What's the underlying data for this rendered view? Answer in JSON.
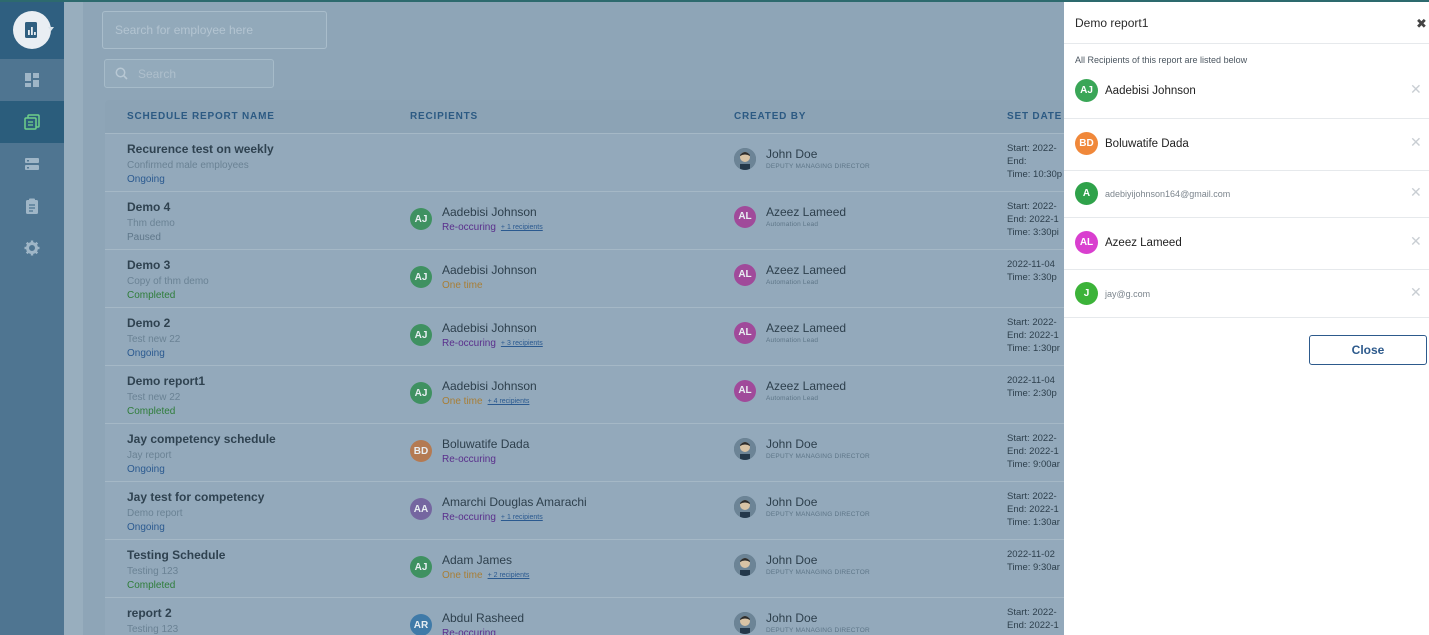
{
  "colors": {
    "sidebar": "#4f7591",
    "sidebar_active": "#2b5d7c",
    "accent": "#2d5a8c",
    "overlay": "#8ea5b7",
    "status_ongoing": "#2b5a90",
    "status_completed": "#2f7d3a"
  },
  "sidebar": {
    "icons": [
      "report-logo-icon",
      "dashboard-icon",
      "reports-icon",
      "list-icon",
      "clipboard-icon",
      "gear-icon"
    ]
  },
  "header": {
    "employee_search_placeholder": "Search for employee here",
    "search_placeholder": "Search"
  },
  "table": {
    "columns": [
      "SCHEDULE REPORT NAME",
      "RECIPIENTS",
      "CREATED BY",
      "SET DATE"
    ],
    "rows": [
      {
        "name": "Recurence test on weekly",
        "desc": "Confirmed male employees",
        "status": "Ongoing",
        "recipient": "",
        "frequency": "",
        "more": "",
        "created_by": "John Doe",
        "role": "DEPUTY MANAGING DIRECTOR",
        "date_lines": [
          "Start: 2022-",
          "End:",
          "Time: 10:30p"
        ]
      },
      {
        "name": "Demo 4",
        "desc": "Thm demo",
        "status": "Paused",
        "recipient": "Aadebisi Johnson",
        "initials": "AJ",
        "frequency": "Re-occuring",
        "more": "+ 1 recipients",
        "created_by": "Azeez Lameed",
        "created_initials": "AL",
        "role": "Automation Lead",
        "date_lines": [
          "Start: 2022-",
          "End: 2022-1",
          "Time: 3:30pi"
        ]
      },
      {
        "name": "Demo 3",
        "desc": "Copy of thm demo",
        "status": "Completed",
        "recipient": "Aadebisi Johnson",
        "initials": "AJ",
        "frequency": "One time",
        "more": "",
        "created_by": "Azeez Lameed",
        "created_initials": "AL",
        "role": "Automation Lead",
        "date_lines": [
          "2022-11-04",
          "Time: 3:30p"
        ]
      },
      {
        "name": "Demo 2",
        "desc": "Test new 22",
        "status": "Ongoing",
        "recipient": "Aadebisi Johnson",
        "initials": "AJ",
        "frequency": "Re-occuring",
        "more": "+ 3 recipients",
        "created_by": "Azeez Lameed",
        "created_initials": "AL",
        "role": "Automation Lead",
        "date_lines": [
          "Start: 2022-",
          "End: 2022-1",
          "Time: 1:30pr"
        ]
      },
      {
        "name": "Demo report1",
        "desc": "Test new 22",
        "status": "Completed",
        "recipient": "Aadebisi Johnson",
        "initials": "AJ",
        "frequency": "One time",
        "more": "+ 4 recipients",
        "created_by": "Azeez Lameed",
        "created_initials": "AL",
        "role": "Automation Lead",
        "date_lines": [
          "2022-11-04",
          "Time: 2:30p"
        ]
      },
      {
        "name": "Jay competency schedule",
        "desc": "Jay report",
        "status": "Ongoing",
        "recipient": "Boluwatife Dada",
        "initials": "BD",
        "frequency": "Re-occuring",
        "more": "",
        "created_by": "John Doe",
        "role": "DEPUTY MANAGING DIRECTOR",
        "date_lines": [
          "Start: 2022-",
          "End: 2022-1",
          "Time: 9:00ar"
        ]
      },
      {
        "name": "Jay test for competency",
        "desc": "Demo report",
        "status": "Ongoing",
        "recipient": "Amarchi Douglas Amarachi",
        "initials": "AA",
        "frequency": "Re-occuring",
        "more": "+ 1 recipients",
        "created_by": "John Doe",
        "role": "DEPUTY MANAGING DIRECTOR",
        "date_lines": [
          "Start: 2022-",
          "End: 2022-1",
          "Time: 1:30ar"
        ]
      },
      {
        "name": "Testing Schedule",
        "desc": "Testing 123",
        "status": "Completed",
        "recipient": "Adam James",
        "initials": "AJ",
        "frequency": "One time",
        "more": "+ 2 recipients",
        "created_by": "John Doe",
        "role": "DEPUTY MANAGING DIRECTOR",
        "date_lines": [
          "2022-11-02",
          "Time: 9:30ar"
        ]
      },
      {
        "name": "report 2",
        "desc": "Testing 123",
        "status": "",
        "recipient": "Abdul Rasheed",
        "initials": "AR",
        "frequency": "Re-occuring",
        "more": "",
        "created_by": "John Doe",
        "role": "DEPUTY MANAGING DIRECTOR",
        "date_lines": [
          "Start: 2022-",
          "End: 2022-1"
        ]
      }
    ]
  },
  "drawer": {
    "title": "Demo report1",
    "close_icon": "✖",
    "subtitle": "All Recipients of this report are listed below",
    "recipients": [
      {
        "initials": "AJ",
        "label": "Aadebisi Johnson",
        "is_email": false,
        "color": "#3aa657"
      },
      {
        "initials": "BD",
        "label": "Boluwatife Dada",
        "is_email": false,
        "color": "#f0883a"
      },
      {
        "initials": "A",
        "label": "adebiyijohnson164@gmail.com",
        "is_email": true,
        "color": "#2fa24a"
      },
      {
        "initials": "AL",
        "label": "Azeez Lameed",
        "is_email": false,
        "color": "#d93fcf"
      },
      {
        "initials": "J",
        "label": "jay@g.com",
        "is_email": true,
        "color": "#3cb339"
      }
    ],
    "remove_icon": "✕",
    "close_button": "Close"
  }
}
